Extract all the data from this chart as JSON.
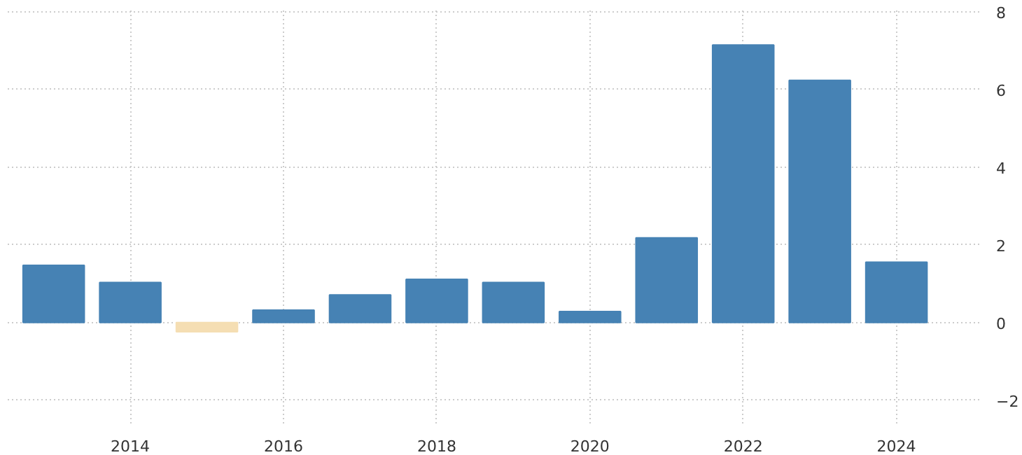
{
  "chart_data": {
    "type": "bar",
    "x": [
      2013,
      2014,
      2015,
      2016,
      2017,
      2018,
      2019,
      2020,
      2021,
      2022,
      2023,
      2024
    ],
    "values": [
      1.47,
      1.03,
      -0.24,
      0.32,
      0.71,
      1.11,
      1.03,
      0.28,
      2.18,
      7.14,
      6.23,
      1.55
    ],
    "colors": [
      "#4682b4",
      "#4682b4",
      "#f5deb3",
      "#4682b4",
      "#4682b4",
      "#4682b4",
      "#4682b4",
      "#4682b4",
      "#4682b4",
      "#4682b4",
      "#4682b4",
      "#4682b4"
    ],
    "xlim": [
      2012.4,
      2025.1
    ],
    "xticks": [
      2014,
      2016,
      2018,
      2020,
      2022,
      2024
    ],
    "ylim": [
      -2.6,
      8.1
    ],
    "yticks": [
      -2,
      0,
      2,
      4,
      6,
      8
    ],
    "grid": true
  }
}
